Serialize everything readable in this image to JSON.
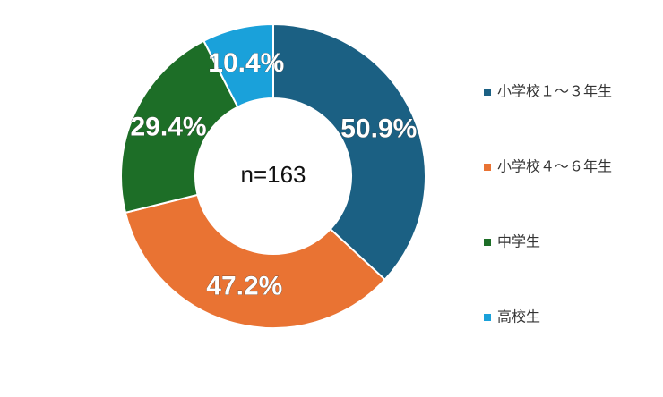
{
  "chart_data": {
    "type": "donut",
    "categories": [
      "小学校１～３年生",
      "小学校４～６年生",
      "中学生",
      "高校生"
    ],
    "values": [
      50.9,
      47.2,
      29.4,
      10.4
    ],
    "value_labels": [
      "50.9%",
      "47.2%",
      "29.4%",
      "10.4%"
    ],
    "colors": [
      "#1b6083",
      "#e97333",
      "#1d6e27",
      "#1aa1da"
    ],
    "center_label": "n=163",
    "legend": "right"
  }
}
